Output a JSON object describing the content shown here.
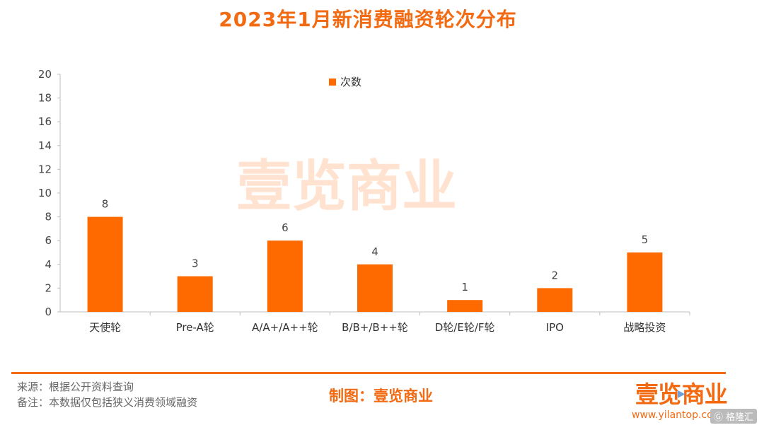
{
  "chart_data": {
    "type": "bar",
    "title": "2023年1月新消费融资轮次分布",
    "categories": [
      "天使轮",
      "Pre-A轮",
      "A/A+/A++轮",
      "B/B+/B++轮",
      "D轮/E轮/F轮",
      "IPO",
      "战略投资"
    ],
    "series": [
      {
        "name": "次数",
        "values": [
          8,
          3,
          6,
          4,
          1,
          2,
          5
        ]
      }
    ],
    "ylim": [
      0,
      20
    ],
    "yticks": [
      0,
      2,
      4,
      6,
      8,
      10,
      12,
      14,
      16,
      18,
      20
    ],
    "xlabel": "",
    "ylabel": "",
    "grid": false,
    "legend_position": "top-center",
    "bar_color": "#ff6a00",
    "watermark": "壹览商业"
  },
  "footer": {
    "source": "来源：根据公开资料查询",
    "note": "备注：本数据仅包括狭义消费领域融资",
    "maker": "制图：壹览商业",
    "brand": "壹览商业",
    "website": "www.yilantop.com",
    "source_watermark": "格隆汇"
  },
  "colors": {
    "accent": "#f26a12",
    "bar": "#ff6a00",
    "axis": "#bfbfbf",
    "text": "#333333"
  }
}
